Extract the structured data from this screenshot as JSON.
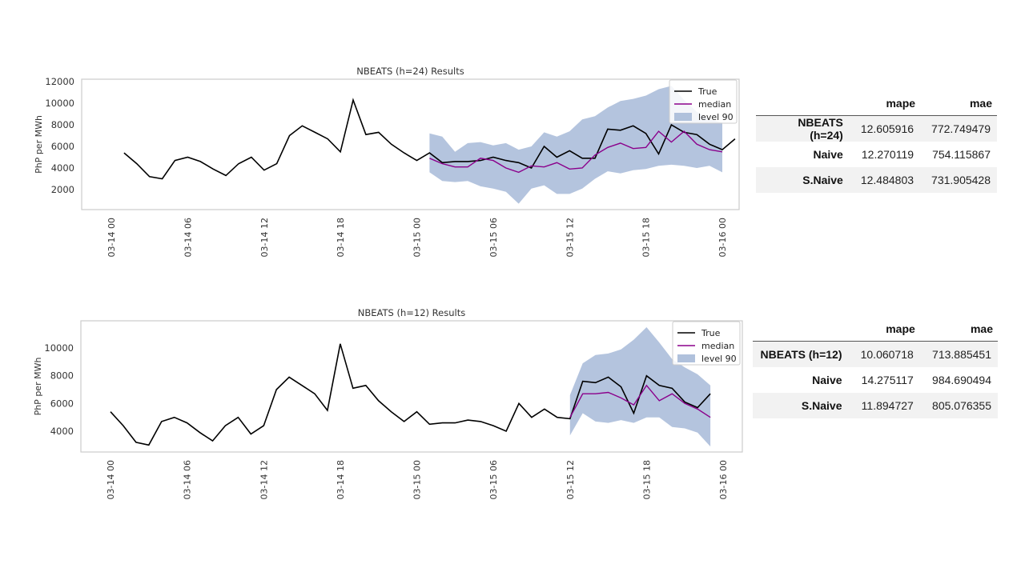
{
  "chart_data": [
    {
      "type": "line",
      "title": "NBEATS (h=24) Results",
      "ylabel": "PhP per MWh",
      "xlabel": "",
      "ylim": [
        0,
        12000
      ],
      "yticks": [
        2000,
        4000,
        6000,
        8000,
        10000,
        12000
      ],
      "x_tick_labels": [
        "03-14 00",
        "03-14 06",
        "03-14 12",
        "03-14 18",
        "03-15 00",
        "03-15 06",
        "03-15 12",
        "03-15 18",
        "03-16 00"
      ],
      "x_start": "03-14 00",
      "x_end": "03-16 00",
      "legend": {
        "placement": "top-right",
        "entries": [
          "True",
          "median",
          "level 90"
        ]
      },
      "grid": false,
      "series": [
        {
          "name": "True",
          "color": "#000000",
          "x_start_hour": 1,
          "values": [
            5400,
            4400,
            3200,
            3000,
            4700,
            5000,
            4600,
            3900,
            3300,
            4400,
            5000,
            3800,
            4400,
            7000,
            7900,
            7300,
            6700,
            5500,
            10300,
            7100,
            7300,
            6200,
            5400,
            4700,
            5400,
            4500,
            4600,
            4600,
            4700,
            5000,
            4700,
            4500,
            4000,
            6000,
            5000,
            5600,
            4900,
            4900,
            7600,
            7500,
            7900,
            7200,
            5300,
            8000,
            7300,
            7100,
            6200,
            5700,
            6700
          ]
        },
        {
          "name": "median",
          "color": "#8b008b",
          "x_start_hour": 25,
          "values": [
            4900,
            4400,
            4100,
            4100,
            4900,
            4700,
            4000,
            3600,
            4200,
            4100,
            4500,
            3900,
            4000,
            5200,
            5900,
            6300,
            5800,
            5900,
            7400,
            6400,
            7400,
            6200,
            5700,
            5500
          ]
        },
        {
          "name": "level 90",
          "color": "#b0c1dc",
          "x_start_hour": 25,
          "lower": [
            3600,
            2800,
            2700,
            2800,
            2300,
            2100,
            1800,
            700,
            2100,
            2400,
            1600,
            1600,
            2100,
            3000,
            3700,
            3500,
            3800,
            3900,
            4200,
            4300,
            4200,
            4000,
            4200,
            3600
          ],
          "upper": [
            7200,
            6900,
            5500,
            6300,
            6400,
            6100,
            6300,
            5700,
            6000,
            7300,
            6900,
            7400,
            8500,
            8800,
            9600,
            10200,
            10400,
            10700,
            11300,
            11600,
            10300,
            9200,
            8500,
            8200
          ]
        }
      ]
    },
    {
      "type": "line",
      "title": "NBEATS (h=12) Results",
      "ylabel": "PhP per MWh",
      "xlabel": "",
      "ylim": [
        2600,
        12000
      ],
      "yticks": [
        4000,
        6000,
        8000,
        10000
      ],
      "x_tick_labels": [
        "03-14 00",
        "03-14 06",
        "03-14 12",
        "03-14 18",
        "03-15 00",
        "03-15 06",
        "03-15 12",
        "03-15 18",
        "03-16 00"
      ],
      "x_start": "03-14 00",
      "x_end": "03-16 00",
      "legend": {
        "placement": "top-right",
        "entries": [
          "True",
          "median",
          "level 90"
        ]
      },
      "grid": false,
      "series": [
        {
          "name": "True",
          "color": "#000000",
          "x_start_hour": 0,
          "values": [
            5400,
            4400,
            3200,
            3000,
            4700,
            5000,
            4600,
            3900,
            3300,
            4400,
            5000,
            3800,
            4400,
            7000,
            7900,
            7300,
            6700,
            5500,
            10300,
            7100,
            7300,
            6200,
            5400,
            4700,
            5400,
            4500,
            4600,
            4600,
            4800,
            4700,
            4400,
            4000,
            6000,
            5000,
            5600,
            5000,
            4900,
            7600,
            7500,
            7900,
            7200,
            5300,
            8000,
            7300,
            7100,
            6100,
            5700,
            6700
          ]
        },
        {
          "name": "median",
          "color": "#8b008b",
          "x_start_hour": 36,
          "values": [
            5000,
            6700,
            6700,
            6800,
            6400,
            5900,
            7300,
            6200,
            6700,
            6000,
            5600,
            5000
          ]
        },
        {
          "name": "level 90",
          "color": "#b0c1dc",
          "x_start_hour": 36,
          "lower": [
            3700,
            5300,
            4700,
            4600,
            4800,
            4600,
            5000,
            5000,
            4300,
            4200,
            3900,
            2900
          ],
          "upper": [
            6600,
            8900,
            9500,
            9600,
            9900,
            10600,
            11500,
            10400,
            9200,
            8600,
            8100,
            7300
          ]
        }
      ]
    }
  ],
  "tables": [
    {
      "headers": [
        "",
        "mape",
        "mae"
      ],
      "rows": [
        {
          "model": "NBEATS (h=24)",
          "mape": "12.605916",
          "mae": "772.749479"
        },
        {
          "model": "Naive",
          "mape": "12.270119",
          "mae": "754.115867"
        },
        {
          "model": "S.Naive",
          "mape": "12.484803",
          "mae": "731.905428"
        }
      ]
    },
    {
      "headers": [
        "",
        "mape",
        "mae"
      ],
      "rows": [
        {
          "model": "NBEATS (h=12)",
          "mape": "10.060718",
          "mae": "713.885451"
        },
        {
          "model": "Naive",
          "mape": "14.275117",
          "mae": "984.690494"
        },
        {
          "model": "S.Naive",
          "mape": "11.894727",
          "mae": "805.076355"
        }
      ]
    }
  ]
}
